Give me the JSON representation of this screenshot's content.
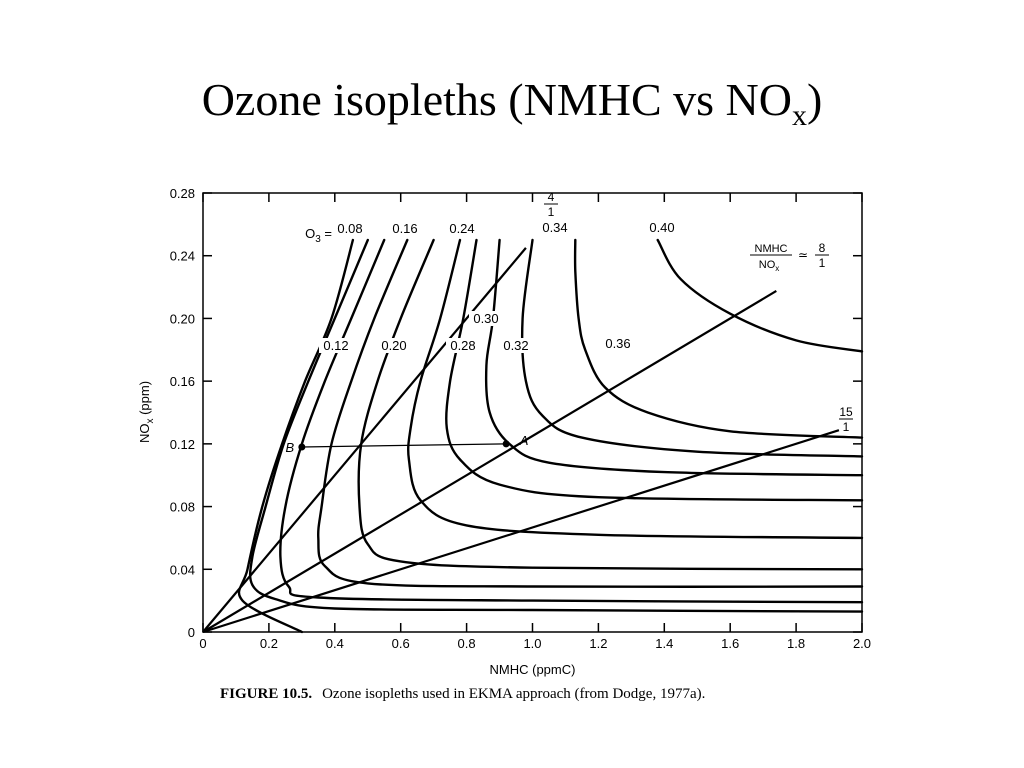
{
  "slide": {
    "title_main": "Ozone isopleths (NMHC vs NO",
    "title_sub": "x",
    "title_close": ")"
  },
  "figure_caption": {
    "label": "FIGURE 10.5.",
    "text": "Ozone isopleths used in EKMA approach (from Dodge, 1977a)."
  },
  "chart_data": {
    "type": "line",
    "xlabel": "NMHC (ppmC)",
    "ylabel": "NO",
    "ylabel_sub": "x",
    "ylabel_unit": " (ppm)",
    "xlim": [
      0,
      2.0
    ],
    "ylim": [
      0,
      0.28
    ],
    "x_ticks": [
      "0",
      "0.2",
      "0.4",
      "0.6",
      "0.8",
      "1.0",
      "1.2",
      "1.4",
      "1.6",
      "1.8",
      "2.0"
    ],
    "y_ticks": [
      "0",
      "0.04",
      "0.08",
      "0.12",
      "0.16",
      "0.20",
      "0.24",
      "0.28"
    ],
    "grid": false,
    "o3_prefix": "O",
    "o3_prefix_sub": "3",
    "o3_prefix_eq": " = ",
    "isopleths": [
      {
        "name": "0.08",
        "points": [
          [
            0.3,
            0.0
          ],
          [
            0.12,
            0.02
          ],
          [
            0.135,
            0.04
          ],
          [
            0.18,
            0.08
          ],
          [
            0.24,
            0.12
          ],
          [
            0.31,
            0.16
          ],
          [
            0.39,
            0.2
          ],
          [
            0.455,
            0.25
          ]
        ]
      },
      {
        "name": "0.12",
        "points": [
          [
            2.0,
            0.013
          ],
          [
            1.0,
            0.014
          ],
          [
            0.4,
            0.015
          ],
          [
            0.22,
            0.021
          ],
          [
            0.15,
            0.03
          ],
          [
            0.15,
            0.048
          ],
          [
            0.19,
            0.08
          ],
          [
            0.245,
            0.12
          ],
          [
            0.32,
            0.16
          ],
          [
            0.4,
            0.2
          ],
          [
            0.5,
            0.25
          ]
        ]
      },
      {
        "name": "0.16",
        "points": [
          [
            2.0,
            0.019
          ],
          [
            1.0,
            0.02
          ],
          [
            0.35,
            0.022
          ],
          [
            0.26,
            0.029
          ],
          [
            0.235,
            0.048
          ],
          [
            0.25,
            0.08
          ],
          [
            0.3,
            0.12
          ],
          [
            0.37,
            0.16
          ],
          [
            0.45,
            0.2
          ],
          [
            0.55,
            0.25
          ]
        ]
      },
      {
        "name": "0.20",
        "points": [
          [
            2.0,
            0.029
          ],
          [
            1.0,
            0.029
          ],
          [
            0.5,
            0.031
          ],
          [
            0.37,
            0.042
          ],
          [
            0.35,
            0.06
          ],
          [
            0.36,
            0.08
          ],
          [
            0.39,
            0.12
          ],
          [
            0.45,
            0.16
          ],
          [
            0.52,
            0.2
          ],
          [
            0.62,
            0.25
          ]
        ]
      },
      {
        "name": "0.24",
        "points": [
          [
            2.0,
            0.04
          ],
          [
            1.0,
            0.041
          ],
          [
            0.6,
            0.045
          ],
          [
            0.5,
            0.056
          ],
          [
            0.475,
            0.08
          ],
          [
            0.48,
            0.12
          ],
          [
            0.53,
            0.16
          ],
          [
            0.6,
            0.2
          ],
          [
            0.7,
            0.25
          ]
        ]
      },
      {
        "name": "0.28",
        "points": [
          [
            2.0,
            0.06
          ],
          [
            1.2,
            0.062
          ],
          [
            0.8,
            0.068
          ],
          [
            0.66,
            0.084
          ],
          [
            0.625,
            0.11
          ],
          [
            0.63,
            0.13
          ],
          [
            0.66,
            0.16
          ],
          [
            0.72,
            0.2
          ],
          [
            0.78,
            0.25
          ]
        ]
      },
      {
        "name": "0.30",
        "points": [
          [
            2.0,
            0.084
          ],
          [
            1.2,
            0.086
          ],
          [
            0.9,
            0.094
          ],
          [
            0.78,
            0.11
          ],
          [
            0.74,
            0.13
          ],
          [
            0.75,
            0.16
          ],
          [
            0.79,
            0.2
          ],
          [
            0.83,
            0.25
          ]
        ]
      },
      {
        "name": "0.32",
        "points": [
          [
            2.0,
            0.1
          ],
          [
            1.4,
            0.102
          ],
          [
            1.05,
            0.108
          ],
          [
            0.93,
            0.12
          ],
          [
            0.87,
            0.14
          ],
          [
            0.86,
            0.17
          ],
          [
            0.88,
            0.2
          ],
          [
            0.9,
            0.25
          ]
        ]
      },
      {
        "name": "0.34",
        "points": [
          [
            2.0,
            0.112
          ],
          [
            1.5,
            0.115
          ],
          [
            1.15,
            0.124
          ],
          [
            1.03,
            0.138
          ],
          [
            0.98,
            0.16
          ],
          [
            0.97,
            0.2
          ],
          [
            1.0,
            0.25
          ]
        ]
      },
      {
        "name": "0.36",
        "points": [
          [
            2.0,
            0.124
          ],
          [
            1.6,
            0.128
          ],
          [
            1.35,
            0.14
          ],
          [
            1.22,
            0.156
          ],
          [
            1.16,
            0.18
          ],
          [
            1.14,
            0.2
          ],
          [
            1.13,
            0.23
          ],
          [
            1.13,
            0.25
          ]
        ]
      },
      {
        "name": "0.40",
        "points": [
          [
            2.0,
            0.179
          ],
          [
            1.8,
            0.186
          ],
          [
            1.6,
            0.203
          ],
          [
            1.45,
            0.225
          ],
          [
            1.38,
            0.25
          ]
        ]
      }
    ],
    "ratio_lines": [
      {
        "label_top": "4",
        "label_bottom": "1",
        "x": [
          0,
          0.98
        ],
        "y": [
          0,
          0.245
        ]
      },
      {
        "label_top": "8",
        "label_bottom": "1",
        "prefix_top": "NMHC",
        "prefix_bottom": "NO",
        "prefix_bottom_sub": "x",
        "approx": "≃",
        "x": [
          0,
          1.74
        ],
        "y": [
          0,
          0.2175
        ]
      },
      {
        "label_top": "15",
        "label_bottom": "1",
        "x": [
          0,
          1.93
        ],
        "y": [
          0,
          0.1287
        ]
      }
    ],
    "points": [
      {
        "name": "B",
        "x": 0.3,
        "y": 0.118
      },
      {
        "name": "A",
        "x": 0.92,
        "y": 0.12
      }
    ],
    "reference_line": {
      "from": "B",
      "to": "A"
    }
  }
}
